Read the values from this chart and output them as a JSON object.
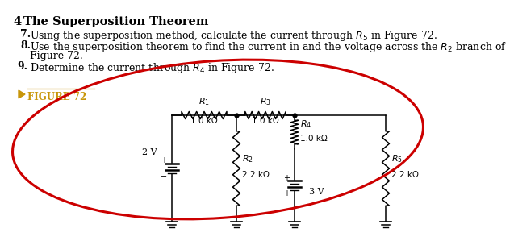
{
  "title_number": "4",
  "title_text": "The Superposition Theorem",
  "line7": "Using the superposition method, calculate the current through $R_5$ in Figure 72.",
  "line8a": "Use the superposition theorem to find the current in and the voltage across the $R_2$ branch of",
  "line8b": "Figure 72.",
  "line9": "Determine the current through $R_4$ in Figure 72.",
  "figure_label": "FIGURE 72",
  "figure_label_color": "#c8960a",
  "arrow_color": "#c8960a",
  "oval_color": "#cc0000",
  "background": "#ffffff",
  "V1_label": "2 V",
  "V2_label": "3 V",
  "R1_val": "1.0 kΩ",
  "R2_val": "2.2 kΩ",
  "R3_val": "1.0 kΩ",
  "R4_val": "1.0 kΩ",
  "R5_val": "2.2 kΩ"
}
